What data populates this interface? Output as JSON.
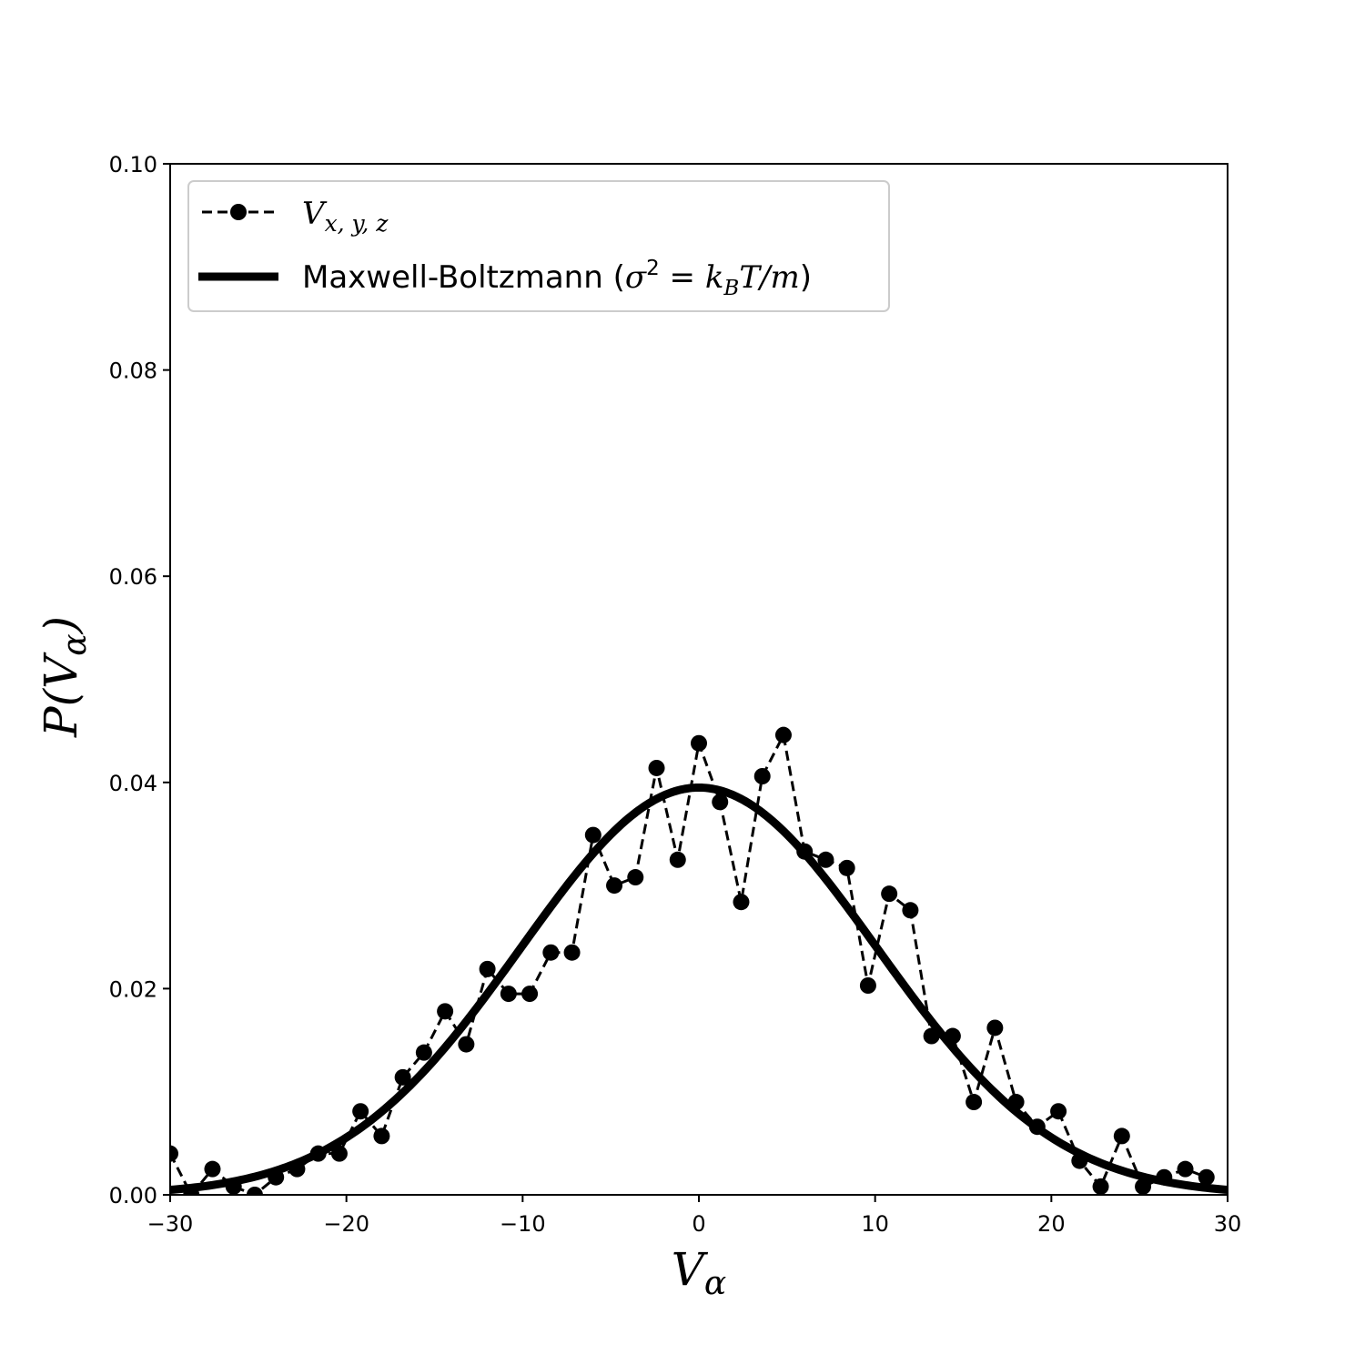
{
  "chart_data": {
    "type": "line",
    "xlabel": "V",
    "xlabel_sub": "α",
    "ylabel_pre": "P(V",
    "ylabel_sub": "α",
    "ylabel_post": ")",
    "xlim": [
      -30,
      30
    ],
    "ylim": [
      0,
      0.1
    ],
    "xticks": [
      -30,
      -20,
      -10,
      0,
      10,
      20,
      30
    ],
    "xtick_labels": [
      "−30",
      "−20",
      "−10",
      "0",
      "10",
      "20",
      "30"
    ],
    "yticks": [
      0,
      0.02,
      0.04,
      0.06,
      0.08,
      0.1
    ],
    "ytick_labels": [
      "0.00",
      "0.02",
      "0.04",
      "0.06",
      "0.08",
      "0.10"
    ],
    "grid": false,
    "legend_position": "top-left",
    "series": [
      {
        "name": "V_{x,y,z}",
        "legend_main": "V",
        "legend_sub": "x, y, z",
        "style": "dashed-markers",
        "color": "#000000",
        "x": [
          -30.0,
          -28.8,
          -27.6,
          -26.4,
          -25.2,
          -24.0,
          -22.8,
          -21.6,
          -20.4,
          -19.2,
          -18.0,
          -16.8,
          -15.6,
          -14.4,
          -13.2,
          -12.0,
          -10.8,
          -9.6,
          -8.4,
          -7.2,
          -6.0,
          -4.8,
          -3.6,
          -2.4,
          -1.2,
          0.0,
          1.2,
          2.4,
          3.6,
          4.8,
          6.0,
          7.2,
          8.4,
          9.6,
          10.8,
          12.0,
          13.2,
          14.4,
          15.6,
          16.8,
          18.0,
          19.2,
          20.4,
          21.6,
          22.8,
          24.0,
          25.2,
          26.4,
          27.6,
          28.8
        ],
        "y": [
          0.004,
          0.0,
          0.0025,
          0.0008,
          0.0,
          0.0017,
          0.0025,
          0.004,
          0.004,
          0.0081,
          0.0057,
          0.0114,
          0.0138,
          0.0178,
          0.0146,
          0.0219,
          0.0195,
          0.0195,
          0.0235,
          0.0235,
          0.0349,
          0.03,
          0.0308,
          0.0414,
          0.0325,
          0.0438,
          0.0381,
          0.0284,
          0.0406,
          0.0446,
          0.0333,
          0.0325,
          0.0317,
          0.0203,
          0.0292,
          0.0276,
          0.0154,
          0.0154,
          0.009,
          0.0162,
          0.009,
          0.0066,
          0.0081,
          0.0033,
          0.0008,
          0.0057,
          0.0008,
          0.0017,
          0.0025,
          0.0017
        ]
      },
      {
        "name": "Maxwell-Boltzmann (σ² = k_B T/m)",
        "legend_main": "Maxwell-Boltzmann (",
        "legend_sigma": "σ",
        "legend_sup": "2",
        "legend_eq": " = ",
        "legend_k": "k",
        "legend_ksub": "B",
        "legend_rest": "T/m",
        "legend_close": ")",
        "style": "solid-thick",
        "color": "#000000",
        "function": "gaussian",
        "mean": 0,
        "sigma": 10.1
      }
    ]
  }
}
